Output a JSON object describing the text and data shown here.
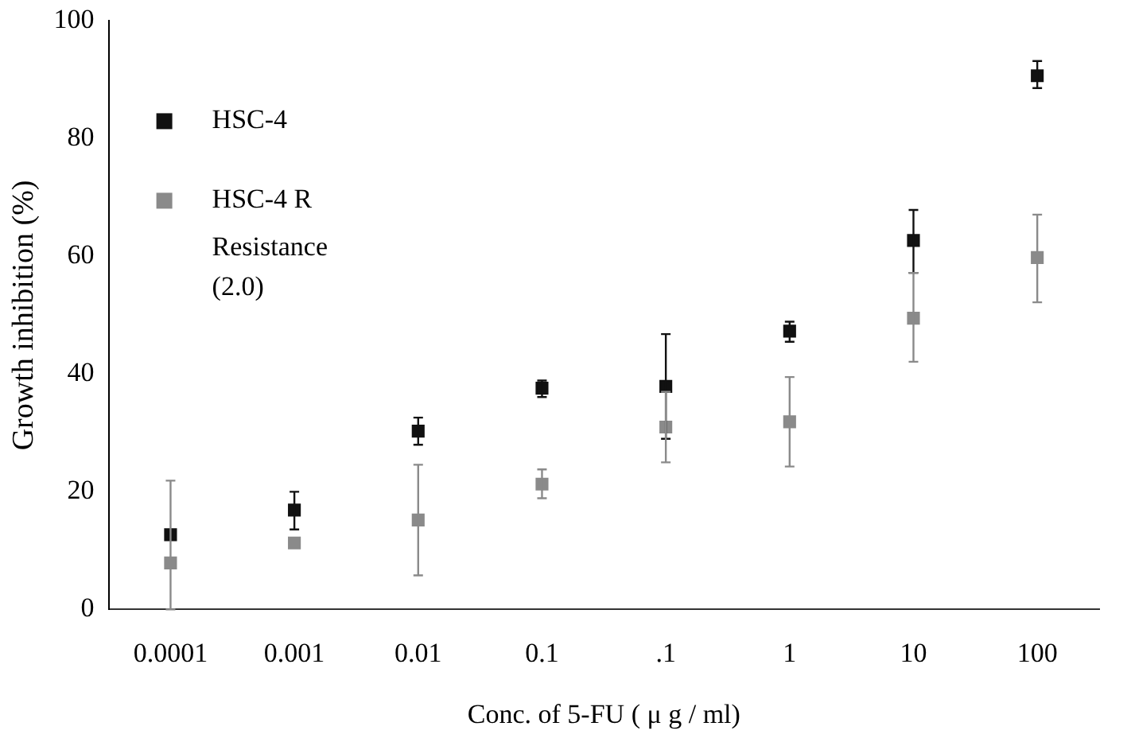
{
  "chart_data": {
    "type": "scatter",
    "xlabel": "Conc. of 5-FU ( μ g / ml)",
    "ylabel": "Growth inhibition (%)",
    "categories": [
      "0.0001",
      "0.001",
      "0.01",
      "0.1",
      ".1",
      "1",
      "10",
      "100"
    ],
    "series": [
      {
        "name": "HSC-4",
        "color": "#111111",
        "values": [
          12.7,
          16.9,
          30.3,
          37.6,
          37.9,
          47.3,
          62.7,
          90.7
        ],
        "errors": [
          null,
          [
            13.6,
            20
          ],
          [
            28,
            32.6
          ],
          [
            36.1,
            38.9
          ],
          [
            29,
            46.8
          ],
          [
            45.5,
            48.9
          ],
          [
            57.2,
            67.9
          ],
          [
            88.6,
            93.2
          ]
        ]
      },
      {
        "name": "HSC-4 R",
        "color": "#8a8a8a",
        "values": [
          7.9,
          11.3,
          15.2,
          21.3,
          31,
          31.9,
          49.5,
          59.8
        ],
        "errors": [
          [
            0,
            21.9
          ],
          null,
          [
            5.8,
            24.6
          ],
          [
            18.9,
            23.8
          ],
          [
            25,
            37
          ],
          [
            24.3,
            39.5
          ],
          [
            42.1,
            57.2
          ],
          [
            52.2,
            67.1
          ]
        ]
      }
    ],
    "annotations": [
      "Resistance (2.0)"
    ],
    "ylim": [
      0,
      100
    ],
    "yticks": [
      0,
      20,
      40,
      60,
      80,
      100
    ],
    "grid": false,
    "legend": "top left",
    "marker": "square"
  }
}
